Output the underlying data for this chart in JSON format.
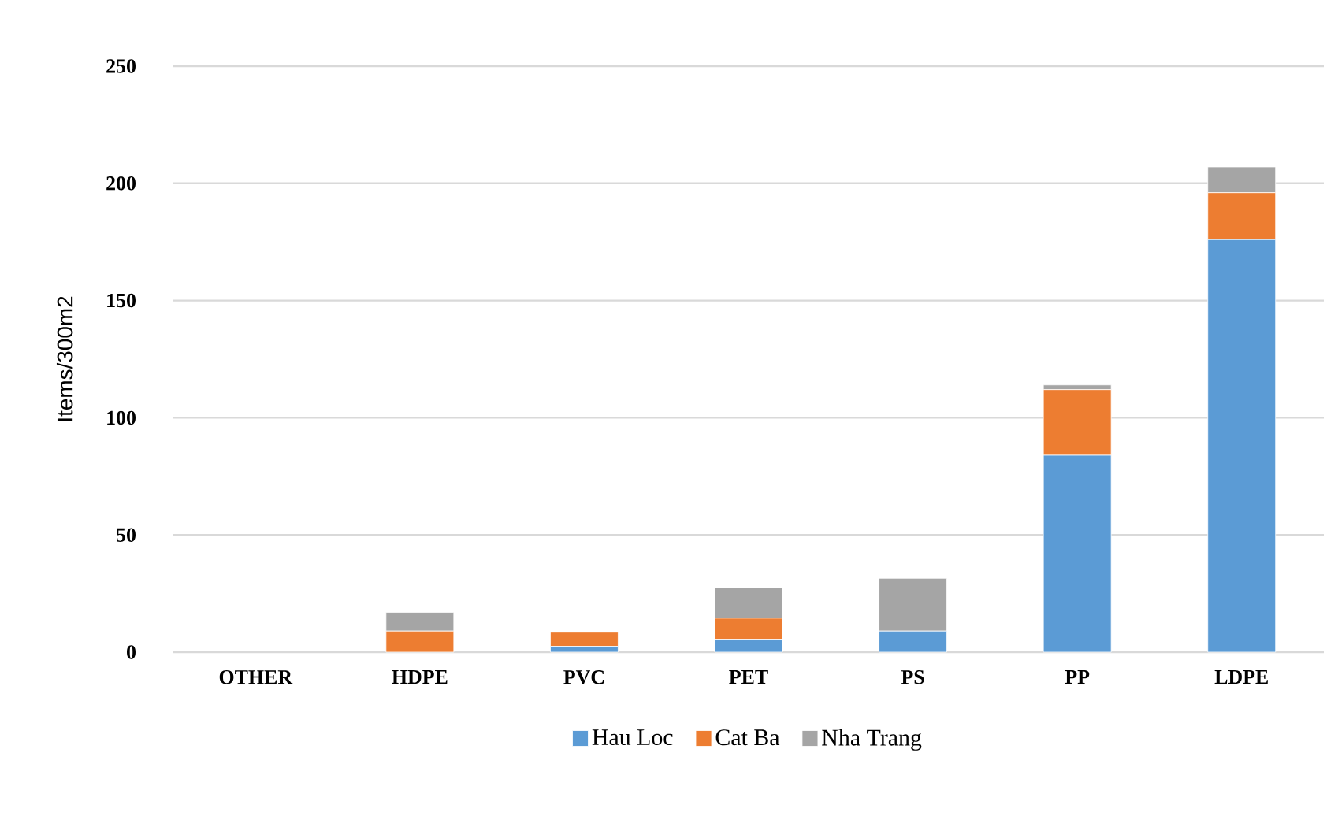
{
  "chart_data": {
    "type": "bar",
    "stacked": true,
    "ylabel": "Items/300m2",
    "categories": [
      "OTHER",
      "HDPE",
      "PVC",
      "PET",
      "PS",
      "PP",
      "LDPE"
    ],
    "series": [
      {
        "name": "Hau Loc",
        "color": "#5b9bd5",
        "values": [
          0,
          0,
          2.5,
          5.5,
          9,
          84,
          176
        ]
      },
      {
        "name": "Cat Ba",
        "color": "#ed7d31",
        "values": [
          0,
          9,
          6,
          9,
          0,
          28,
          20
        ]
      },
      {
        "name": "Nha Trang",
        "color": "#a5a5a5",
        "values": [
          0,
          8,
          0,
          13,
          22.5,
          2,
          11
        ]
      }
    ],
    "ylim": [
      0,
      250
    ],
    "yticks": [
      0,
      50,
      100,
      150,
      200,
      250
    ],
    "grid": "y",
    "legend": "bottom"
  }
}
